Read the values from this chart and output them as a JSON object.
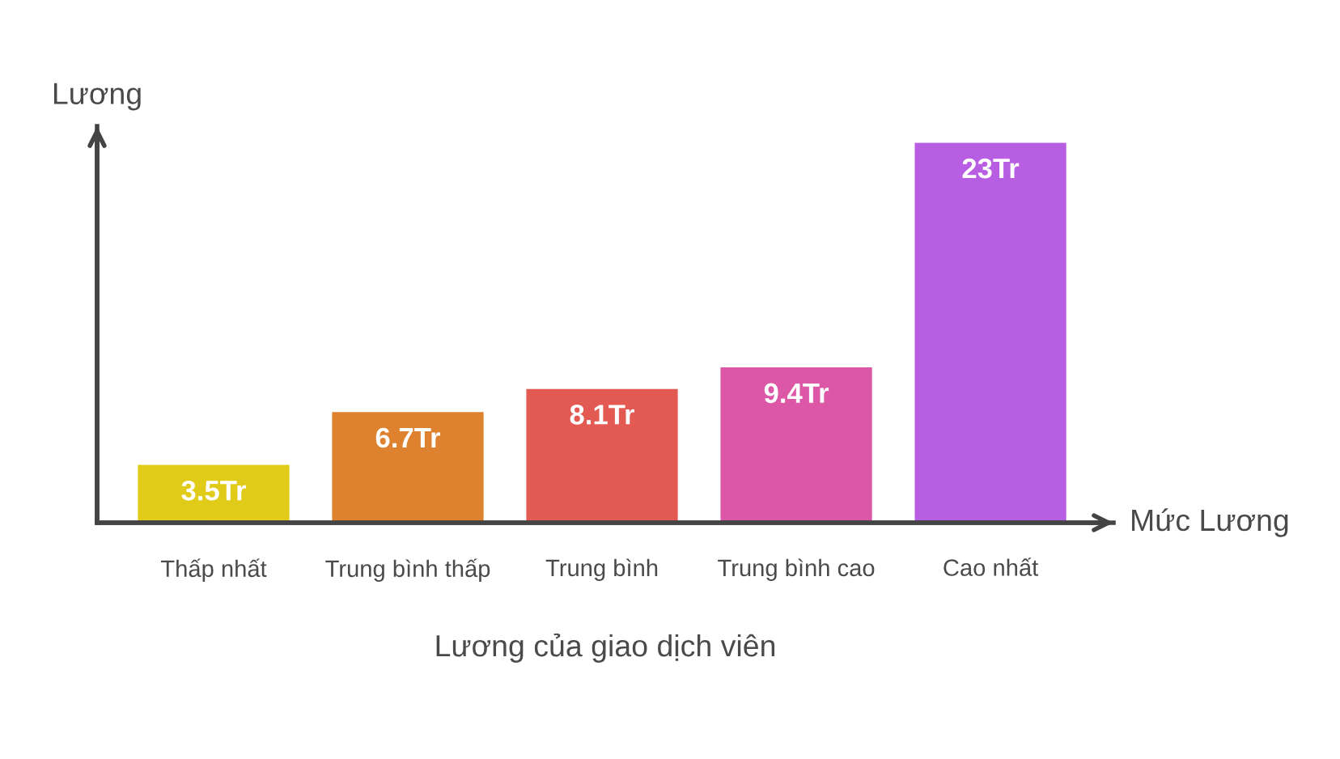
{
  "chart_data": {
    "type": "bar",
    "title": "Lương của giao dịch viên",
    "xlabel": "Mức Lương",
    "ylabel": "Lương",
    "categories": [
      "Thấp nhất",
      "Trung bình thấp",
      "Trung bình",
      "Trung bình cao",
      "Cao nhất"
    ],
    "values": [
      3.5,
      6.7,
      8.1,
      9.4,
      23
    ],
    "value_labels": [
      "3.5Tr",
      "6.7Tr",
      "8.1Tr",
      "9.4Tr",
      "23Tr"
    ],
    "colors": [
      "#e0cb18",
      "#df8230",
      "#e35a52",
      "#dc58a6",
      "#b85ee2"
    ],
    "ylim": [
      0,
      24
    ],
    "tick_labels": "x"
  }
}
